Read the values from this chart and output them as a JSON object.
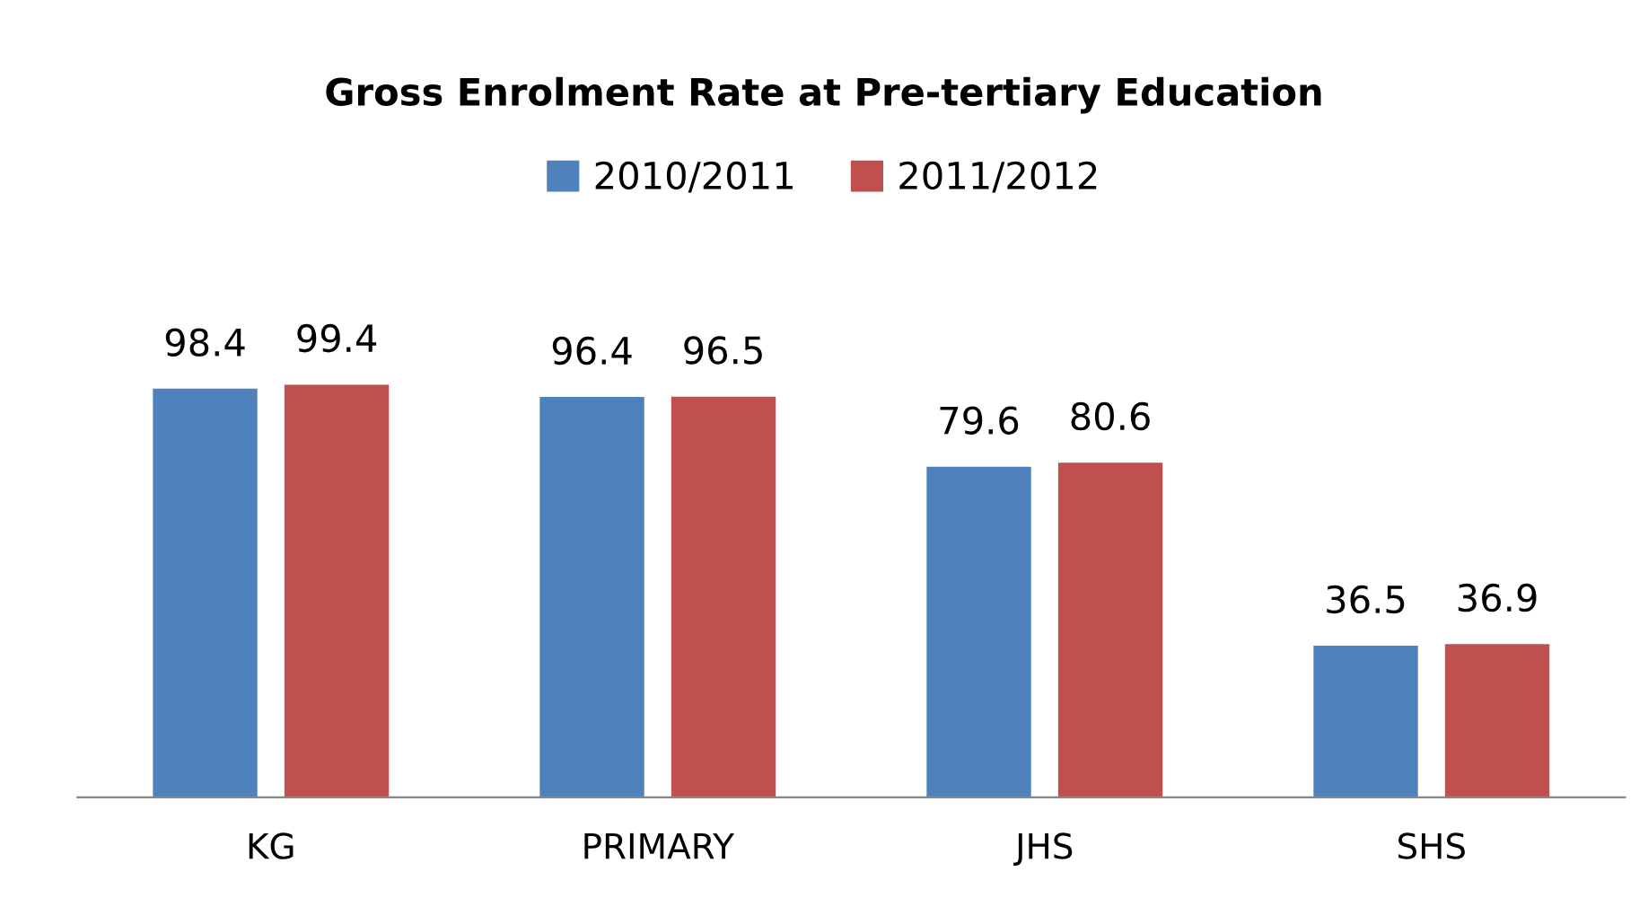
{
  "chart_data": {
    "type": "bar",
    "title": "Gross Enrolment Rate at Pre-tertiary Education",
    "categories": [
      "KG",
      "PRIMARY",
      "JHS",
      "SHS"
    ],
    "series": [
      {
        "name": "2010/2011",
        "color": "#4f81bd",
        "values": [
          98.4,
          96.4,
          79.6,
          36.5
        ]
      },
      {
        "name": "2011/2012",
        "color": "#c0504d",
        "values": [
          99.4,
          96.5,
          80.6,
          36.9
        ]
      }
    ],
    "relative": false,
    "data_labels": true,
    "legend": "top",
    "grid": false
  }
}
